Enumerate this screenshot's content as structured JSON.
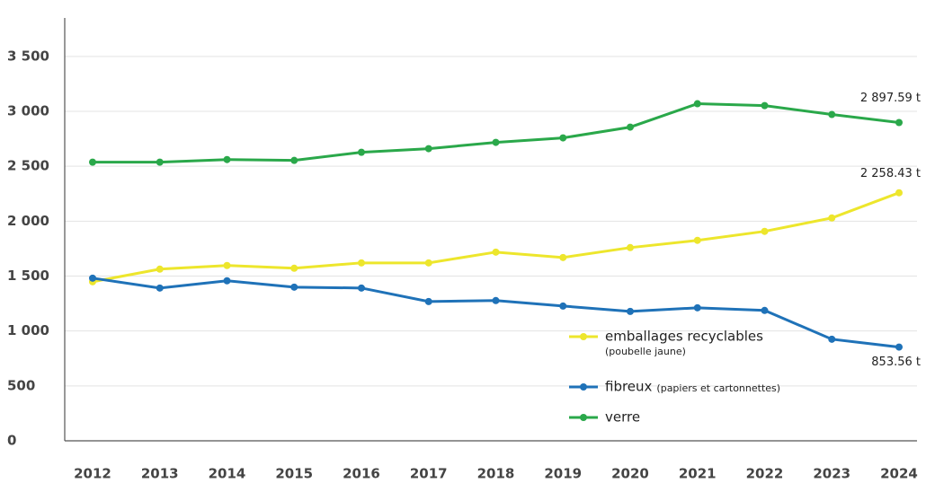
{
  "chart_data": {
    "type": "line",
    "categories": [
      "2012",
      "2013",
      "2014",
      "2015",
      "2016",
      "2017",
      "2018",
      "2019",
      "2020",
      "2021",
      "2022",
      "2023",
      "2024"
    ],
    "series": [
      {
        "name": "emballages recyclables",
        "note": "(poubelle jaune)",
        "color": "#ede62c",
        "values": [
          1448,
          1563,
          1596,
          1571,
          1620,
          1620,
          1718,
          1669,
          1759,
          1825,
          1907,
          2029,
          2258.43
        ],
        "value_labels": [
          null,
          null,
          null,
          null,
          null,
          null,
          null,
          null,
          null,
          null,
          null,
          null,
          "2 258.43 t"
        ]
      },
      {
        "name": "fibreux",
        "note": "(papiers et cartonnettes)",
        "color": "#1f72b8",
        "values": [
          1481,
          1391,
          1457,
          1399,
          1391,
          1268,
          1277,
          1227,
          1178,
          1211,
          1187,
          925,
          853.56
        ],
        "value_labels": [
          null,
          null,
          null,
          null,
          null,
          null,
          null,
          null,
          null,
          null,
          null,
          null,
          "853.56 t"
        ]
      },
      {
        "name": "verre",
        "color": "#2aa84a",
        "values": [
          2537,
          2537,
          2561,
          2553,
          2627,
          2660,
          2717,
          2758,
          2856,
          3069,
          3052,
          2971,
          2897.59
        ],
        "value_labels": [
          null,
          null,
          null,
          null,
          null,
          null,
          null,
          null,
          null,
          null,
          null,
          null,
          "2 897.59 t"
        ]
      }
    ],
    "ylim": [
      0,
      3850
    ],
    "yticks": [
      {
        "value": 0,
        "label": "0"
      },
      {
        "value": 500,
        "label": "500"
      },
      {
        "value": 1000,
        "label": "1 000"
      },
      {
        "value": 1500,
        "label": "1 500"
      },
      {
        "value": 2000,
        "label": "2 000"
      },
      {
        "value": 2500,
        "label": "2 500"
      },
      {
        "value": 3000,
        "label": "3 000"
      },
      {
        "value": 3500,
        "label": "3 500"
      }
    ],
    "grid": true
  }
}
